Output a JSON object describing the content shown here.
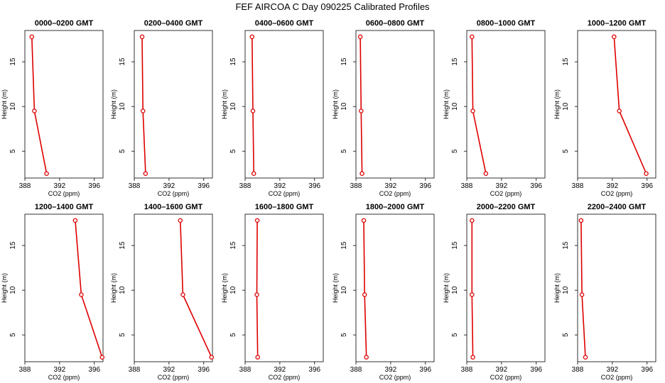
{
  "title": "FEF AIRCOA C  Day 090225  Calibrated Profiles",
  "chart_data": {
    "type": "line",
    "title": "FEF AIRCOA C  Day 090225  Calibrated Profiles",
    "xlabel": "CO2 (ppm)",
    "ylabel": "Height (m)",
    "xlim": [
      388,
      397
    ],
    "ylim": [
      2,
      18.5
    ],
    "xticks": [
      "388",
      "392",
      "396"
    ],
    "yticks": [
      "5",
      "10",
      "15"
    ],
    "grid": false,
    "heights": [
      17.8,
      9.5,
      2.5
    ],
    "panels": [
      {
        "name": "0000–0200 GMT",
        "x": [
          388.8,
          389.1,
          390.5
        ]
      },
      {
        "name": "0200–0400 GMT",
        "x": [
          388.9,
          389.0,
          389.3
        ]
      },
      {
        "name": "0400–0600 GMT",
        "x": [
          388.8,
          388.9,
          389.0
        ]
      },
      {
        "name": "0600–0800 GMT",
        "x": [
          388.5,
          388.6,
          388.7
        ]
      },
      {
        "name": "0800–1000 GMT",
        "x": [
          388.6,
          388.7,
          390.2
        ]
      },
      {
        "name": "1000–1200 GMT",
        "x": [
          392.2,
          392.8,
          395.9
        ]
      },
      {
        "name": "1200–1400 GMT",
        "x": [
          393.8,
          394.5,
          396.9
        ]
      },
      {
        "name": "1400–1600 GMT",
        "x": [
          393.3,
          393.6,
          396.9
        ]
      },
      {
        "name": "1600–1800 GMT",
        "x": [
          389.4,
          389.35,
          389.45
        ]
      },
      {
        "name": "1800–2000 GMT",
        "x": [
          388.9,
          389.0,
          389.2
        ]
      },
      {
        "name": "2000–2200 GMT",
        "x": [
          388.6,
          388.6,
          388.7
        ]
      },
      {
        "name": "2200–2400 GMT",
        "x": [
          388.4,
          388.5,
          388.9
        ]
      }
    ],
    "colors": {
      "line": "#dd0000",
      "axis": "#000000"
    }
  }
}
